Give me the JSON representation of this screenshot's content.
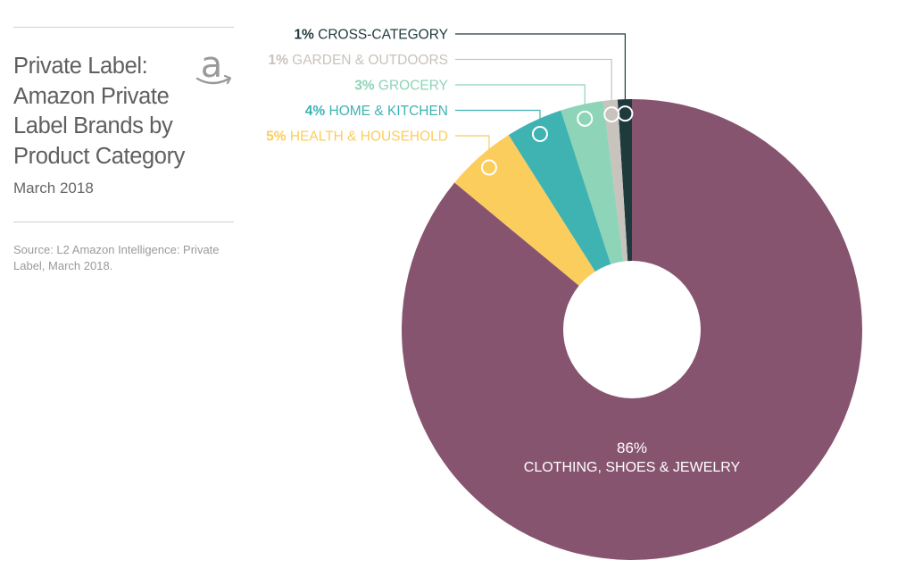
{
  "header": {
    "title": "Private Label: Amazon Private Label Brands by Product Category",
    "subtitle": "March 2018",
    "source": "Source: L2 Amazon Intelligence: Private Label, March 2018.",
    "logo_icon": "amazon-logo-icon",
    "logo_text": "a"
  },
  "chart_data": {
    "type": "pie",
    "variant": "donut",
    "title": "Private Label: Amazon Private Label Brands by Product Category",
    "subtitle": "March 2018",
    "categories": [
      "CROSS-CATEGORY",
      "GARDEN & OUTDOORS",
      "GROCERY",
      "HOME & KITCHEN",
      "HEALTH & HOUSEHOLD",
      "CLOTHING, SHOES & JEWELRY"
    ],
    "values": [
      1,
      1,
      3,
      4,
      5,
      86
    ],
    "value_labels": [
      "1%",
      "1%",
      "3%",
      "4%",
      "5%",
      "86%"
    ],
    "colors": [
      "#1f3a3d",
      "#c8c3bc",
      "#8ed4b8",
      "#3fb3b2",
      "#fbcd5d",
      "#875470"
    ],
    "unit": "%"
  }
}
